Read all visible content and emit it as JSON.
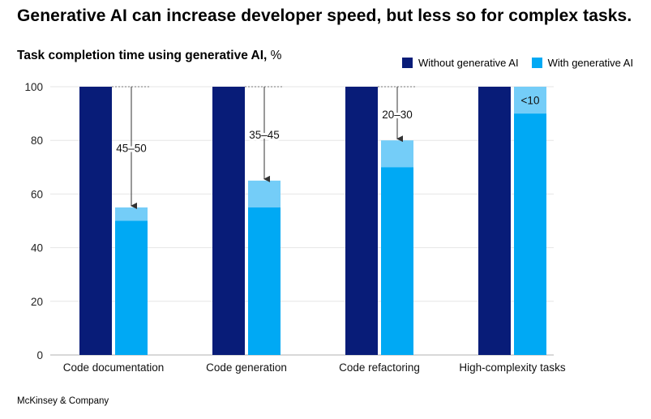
{
  "title": "Generative AI can increase developer speed, but less so for complex tasks.",
  "subtitle_bold": "Task completion time using generative AI,",
  "subtitle_unit": " %",
  "source": "McKinsey & Company",
  "colors": {
    "without": "#081c78",
    "with": "#00a9f4",
    "with_range": "#74cdf8",
    "grid": "#e6e6e6",
    "axis": "#b0b0b0"
  },
  "chart_data": {
    "type": "bar",
    "title": "Task completion time using generative AI, %",
    "categories": [
      "Code documentation",
      "Code generation",
      "Code refactoring",
      "High-complexity tasks"
    ],
    "series": [
      {
        "name": "Without generative AI",
        "values": [
          100,
          100,
          100,
          100
        ]
      },
      {
        "name": "With generative AI",
        "values": [
          50,
          55,
          70,
          90
        ],
        "range_top": [
          55,
          65,
          80,
          100
        ]
      }
    ],
    "annotations": [
      "45–50",
      "35–45",
      "20–30",
      "<10"
    ],
    "ylim": [
      0,
      100
    ],
    "yticks": [
      0,
      20,
      40,
      60,
      80,
      100
    ],
    "grid": true,
    "legend": "top-right"
  }
}
